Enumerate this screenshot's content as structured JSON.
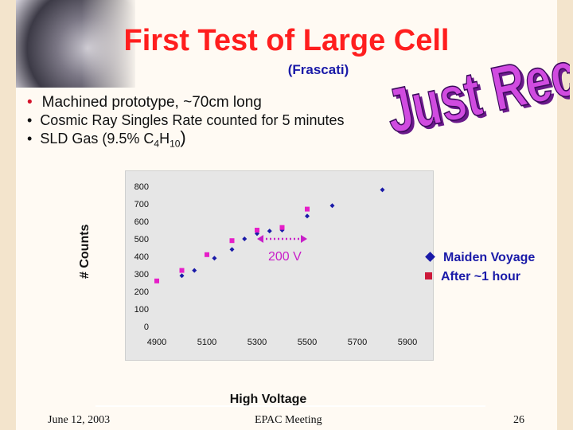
{
  "title": "First Test of Large Cell",
  "subtitle": "(Frascati)",
  "bullets": {
    "item1": "Machined prototype, ~70cm long",
    "item2": "Cosmic Ray Singles Rate counted for 5 minutes",
    "item3_prefix": "SLD Gas (9.5% C",
    "item3_sub1": "4",
    "item3_mid": "H",
    "item3_sub2": "10",
    "item3_suffix": ")"
  },
  "stamp_text": "Just Received!",
  "chart_data": {
    "type": "scatter",
    "xlabel": "High Voltage",
    "ylabel": "# Counts",
    "xlim": [
      4900,
      5900
    ],
    "ylim": [
      0,
      800
    ],
    "xticks": [
      4900,
      5100,
      5300,
      5500,
      5700,
      5900
    ],
    "yticks": [
      0,
      100,
      200,
      300,
      400,
      500,
      600,
      700,
      800
    ],
    "grid": false,
    "legend_position": "right",
    "series": [
      {
        "name": "Maiden Voyage",
        "marker": "diamond",
        "color": "#1a1aa8",
        "points": [
          [
            5000,
            290
          ],
          [
            5050,
            320
          ],
          [
            5130,
            390
          ],
          [
            5200,
            440
          ],
          [
            5250,
            500
          ],
          [
            5300,
            530
          ],
          [
            5350,
            545
          ],
          [
            5400,
            550
          ],
          [
            5500,
            630
          ],
          [
            5600,
            690
          ],
          [
            5800,
            780
          ]
        ]
      },
      {
        "name": "After ~1 hour",
        "marker": "square",
        "color": "#e61ec8",
        "points": [
          [
            4900,
            260
          ],
          [
            5000,
            320
          ],
          [
            5100,
            410
          ],
          [
            5200,
            490
          ],
          [
            5300,
            550
          ],
          [
            5400,
            565
          ],
          [
            5500,
            670
          ]
        ]
      }
    ],
    "annotation": {
      "text": "200 V",
      "from_x": 5300,
      "to_x": 5500,
      "y": 500
    }
  },
  "footer": {
    "date": "June 12, 2003",
    "event": "EPAC  Meeting",
    "page": "26"
  }
}
